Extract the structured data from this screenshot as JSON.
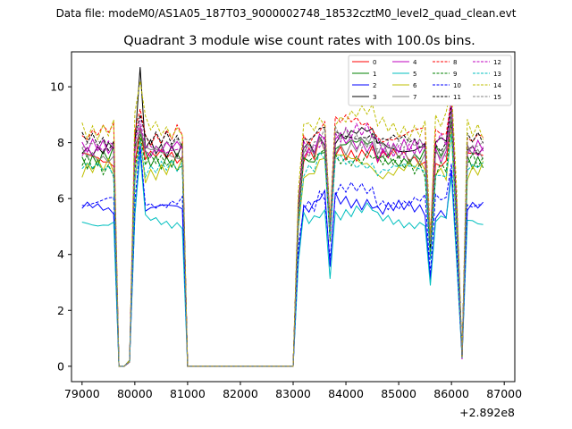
{
  "figure": {
    "suptitle": "Data file: modeM0/AS1A05_187T03_9000002748_18532cztM0_level2_quad_clean.evt"
  },
  "chart_data": {
    "type": "line",
    "title": "Quadrant 3 module wise count rates with 100.0s bins.",
    "xlabel": "",
    "ylabel": "",
    "x_offset_label": "+2.892e8",
    "xlim": [
      78800,
      87200
    ],
    "ylim": [
      -0.55,
      11.25
    ],
    "xticks": [
      79000,
      80000,
      81000,
      82000,
      83000,
      84000,
      85000,
      86000,
      87000
    ],
    "xtick_labels": [
      "79000",
      "80000",
      "81000",
      "82000",
      "83000",
      "84000",
      "85000",
      "86000",
      "87000"
    ],
    "yticks": [
      0,
      2,
      4,
      6,
      8,
      10
    ],
    "ytick_labels": [
      "0",
      "2",
      "4",
      "6",
      "8",
      "10"
    ],
    "grid": false,
    "legend_placement": "top-right",
    "series": [
      {
        "name": "0",
        "color": "#ff0000",
        "dash": "solid",
        "base": 7.4,
        "amp": 0.45,
        "peak": 8.5
      },
      {
        "name": "1",
        "color": "#008000",
        "dash": "solid",
        "base": 7.5,
        "amp": 0.45,
        "peak": 8.4
      },
      {
        "name": "2",
        "color": "#0000ff",
        "dash": "solid",
        "base": 5.6,
        "amp": 0.35,
        "peak": 7.8
      },
      {
        "name": "3",
        "color": "#000000",
        "dash": "solid",
        "base": 7.9,
        "amp": 0.45,
        "peak": 10.7
      },
      {
        "name": "4",
        "color": "#bf00bf",
        "dash": "solid",
        "base": 7.7,
        "amp": 0.45,
        "peak": 8.6
      },
      {
        "name": "5",
        "color": "#00bfbf",
        "dash": "solid",
        "base": 5.2,
        "amp": 0.35,
        "peak": 7.6
      },
      {
        "name": "6",
        "color": "#bfbf00",
        "dash": "solid",
        "base": 7.0,
        "amp": 0.45,
        "peak": 8.2
      },
      {
        "name": "7",
        "color": "#808080",
        "dash": "solid",
        "base": 7.6,
        "amp": 0.4,
        "peak": 8.4
      },
      {
        "name": "8",
        "color": "#ff0000",
        "dash": "dashed",
        "base": 8.3,
        "amp": 0.45,
        "peak": 9.2
      },
      {
        "name": "9",
        "color": "#008000",
        "dash": "dashed",
        "base": 7.2,
        "amp": 0.45,
        "peak": 8.3
      },
      {
        "name": "10",
        "color": "#0000ff",
        "dash": "dashed",
        "base": 5.9,
        "amp": 0.35,
        "peak": 7.9
      },
      {
        "name": "11",
        "color": "#000000",
        "dash": "dashed",
        "base": 8.0,
        "amp": 0.4,
        "peak": 9.0
      },
      {
        "name": "12",
        "color": "#bf00bf",
        "dash": "dashed",
        "base": 7.9,
        "amp": 0.45,
        "peak": 8.8
      },
      {
        "name": "13",
        "color": "#00bfbf",
        "dash": "dashed",
        "base": 7.0,
        "amp": 0.4,
        "peak": 8.1
      },
      {
        "name": "14",
        "color": "#bfbf00",
        "dash": "dashed",
        "base": 8.6,
        "amp": 0.5,
        "peak": 10.2
      },
      {
        "name": "15",
        "color": "#808080",
        "dash": "dashed",
        "base": 7.8,
        "amp": 0.45,
        "peak": 8.6
      }
    ]
  }
}
